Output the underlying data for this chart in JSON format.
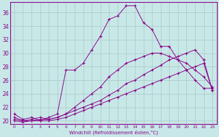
{
  "title": "",
  "xlabel": "Windchill (Refroidissement éolien,°C)",
  "background_color": "#c8e8e8",
  "line_color": "#880088",
  "grid_color": "#a8c8c8",
  "xlim": [
    -0.5,
    23.5
  ],
  "ylim": [
    19.5,
    37.5
  ],
  "yticks": [
    20,
    22,
    24,
    26,
    28,
    30,
    32,
    34,
    36
  ],
  "xticks": [
    0,
    1,
    2,
    3,
    4,
    5,
    6,
    7,
    8,
    9,
    10,
    11,
    12,
    13,
    14,
    15,
    16,
    17,
    18,
    19,
    20,
    21,
    22,
    23
  ],
  "lines": [
    {
      "x": [
        0,
        1,
        2,
        3,
        4,
        5,
        6,
        7,
        8,
        9,
        10,
        11,
        12,
        13,
        14,
        15,
        16,
        17,
        18,
        19,
        20,
        21,
        22,
        23
      ],
      "y": [
        21.0,
        20.2,
        20.5,
        20.0,
        20.5,
        21.0,
        27.5,
        27.5,
        28.5,
        30.5,
        32.5,
        35.0,
        35.5,
        37.0,
        37.0,
        34.5,
        33.5,
        31.0,
        31.0,
        29.0,
        27.5,
        26.0,
        24.8,
        24.8
      ]
    },
    {
      "x": [
        0,
        1,
        2,
        3,
        4,
        5,
        6,
        7,
        8,
        9,
        10,
        11,
        12,
        13,
        14,
        15,
        16,
        17,
        18,
        19,
        20,
        21,
        22,
        23
      ],
      "y": [
        20.5,
        20.0,
        20.2,
        20.5,
        20.2,
        20.5,
        21.0,
        22.0,
        23.0,
        24.0,
        25.0,
        26.5,
        27.5,
        28.5,
        29.0,
        29.5,
        30.0,
        30.0,
        29.5,
        29.0,
        28.5,
        27.5,
        26.5,
        25.0
      ]
    },
    {
      "x": [
        0,
        1,
        2,
        3,
        4,
        5,
        6,
        7,
        8,
        9,
        10,
        11,
        12,
        13,
        14,
        15,
        16,
        17,
        18,
        19,
        20,
        21,
        22,
        23
      ],
      "y": [
        20.2,
        20.0,
        20.0,
        20.2,
        20.2,
        20.5,
        21.0,
        21.5,
        22.0,
        22.5,
        23.0,
        23.8,
        24.5,
        25.5,
        26.0,
        26.8,
        27.5,
        28.2,
        29.0,
        29.5,
        30.0,
        30.5,
        29.0,
        24.5
      ]
    },
    {
      "x": [
        0,
        1,
        2,
        3,
        4,
        5,
        6,
        7,
        8,
        9,
        10,
        11,
        12,
        13,
        14,
        15,
        16,
        17,
        18,
        19,
        20,
        21,
        22,
        23
      ],
      "y": [
        20.0,
        19.8,
        20.0,
        20.0,
        20.0,
        20.2,
        20.5,
        21.0,
        21.5,
        22.0,
        22.5,
        23.0,
        23.5,
        24.0,
        24.5,
        25.0,
        25.5,
        26.0,
        26.5,
        27.0,
        27.5,
        28.0,
        28.5,
        24.5
      ]
    }
  ]
}
